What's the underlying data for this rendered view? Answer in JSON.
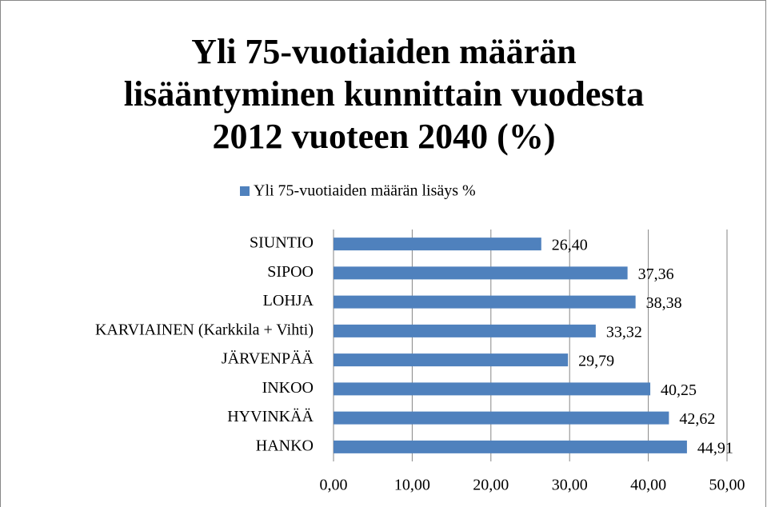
{
  "chart_data": {
    "type": "bar",
    "orientation": "horizontal",
    "title": "Yli 75-vuotiaiden määrän lisääntyminen kunnittain vuodesta 2012 vuoteen 2040 (%)",
    "categories": [
      "SIUNTIO",
      "SIPOO",
      "LOHJA",
      "KARVIAINEN (Karkkila + Vihti)",
      "JÄRVENPÄÄ",
      "INKOO",
      "HYVINKÄÄ",
      "HANKO"
    ],
    "series": [
      {
        "name": "Yli 75-vuotiaiden määrän lisäys %",
        "color": "#4f81bd",
        "values": [
          26.4,
          37.36,
          38.38,
          33.32,
          29.79,
          40.25,
          42.62,
          44.91
        ],
        "value_labels": [
          "26,40",
          "37,36",
          "38,38",
          "33,32",
          "29,79",
          "40,25",
          "42,62",
          "44,91"
        ]
      }
    ],
    "xlim": [
      0,
      50
    ],
    "xticks": [
      {
        "value": 0,
        "label": "0,00"
      },
      {
        "value": 10,
        "label": "10,00"
      },
      {
        "value": 20,
        "label": "20,00"
      },
      {
        "value": 30,
        "label": "30,00"
      },
      {
        "value": 40,
        "label": "40,00"
      },
      {
        "value": 50,
        "label": "50,00"
      }
    ],
    "grid": true,
    "legend": "top"
  }
}
